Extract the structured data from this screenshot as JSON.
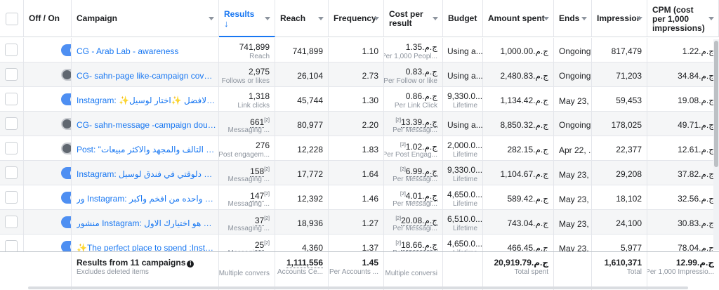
{
  "headers": {
    "off_on": "Off / On",
    "campaign": "Campaign",
    "results": "Results",
    "reach": "Reach",
    "frequency": "Frequency",
    "cost_per_result": "Cost per result",
    "budget": "Budget",
    "amount_spent": "Amount spent",
    "ends": "Ends",
    "impressions": "Impressior",
    "cpm": "CPM (cost per 1,000 impressions)"
  },
  "rows": [
    {
      "on": true,
      "campaign": "CG - Arab Lab - awareness",
      "results": "741,899",
      "results_sub": "Reach",
      "results_dotted": false,
      "results_sup": "",
      "reach": "741,899",
      "frequency": "1.10",
      "cost": "ج.م.1.35",
      "cost_sub": "Per 1,000 Peopl...",
      "cost_dotted": false,
      "cost_sup": "",
      "budget": "Using a...",
      "budget_sub": "",
      "spent": "ج.م.1,000.00",
      "ends": "Ongoing",
      "ends_date": false,
      "impressions": "817,479",
      "cpm": "ج.م.1.22"
    },
    {
      "on": false,
      "campaign": "CG- sahn-page like-campaign cover 16/2",
      "results": "2,975",
      "results_sub": "Follows or likes",
      "results_dotted": false,
      "results_sup": "",
      "reach": "26,104",
      "frequency": "2.73",
      "cost": "ج.م.0.83",
      "cost_sub": "Per Follow or like",
      "cost_dotted": false,
      "cost_sup": "",
      "budget": "Using a...",
      "budget_sub": "",
      "spent": "ج.م.2,480.83",
      "ends": "Ongoing",
      "ends_date": false,
      "impressions": "71,203",
      "cpm": "ج.م.34.84"
    },
    {
      "on": true,
      "campaign": "Instagram: ✨اختار الافضل ✨اختار لوسيل...",
      "results": "1,318",
      "results_sub": "Link clicks",
      "results_dotted": false,
      "results_sup": "",
      "reach": "45,744",
      "frequency": "1.30",
      "cost": "ج.م.0.86",
      "cost_sub": "Per Link Click",
      "cost_dotted": false,
      "cost_sup": "",
      "budget": "9,330.0...",
      "budget_sub": "Lifetime",
      "spent": "ج.م.1,134.42",
      "ends": "May 23, ...",
      "ends_date": true,
      "impressions": "59,453",
      "cpm": "ج.م.19.08"
    },
    {
      "on": false,
      "campaign": "CG- sahn-message -campaign double o...",
      "results": "661",
      "results_sub": "Messaging ...",
      "results_dotted": true,
      "results_sup": "[2]",
      "reach": "80,977",
      "frequency": "2.20",
      "cost": "ج.م.13.39",
      "cost_sub": "Per Messagi...",
      "cost_dotted": true,
      "cost_sup": "[2]",
      "budget": "Using a...",
      "budget_sub": "",
      "spent": "ج.م.8,850.32",
      "ends": "Ongoing",
      "ends_date": false,
      "impressions": "178,025",
      "cpm": "ج.م.49.71"
    },
    {
      "on": false,
      "campaign": "Post: \"يين يومي للشعر التالف والمجهد والاكثر مبيعات...",
      "results": "276",
      "results_sub": "Post engagem...",
      "results_dotted": false,
      "results_sup": "",
      "reach": "12,228",
      "frequency": "1.83",
      "cost": "ج.م.1.02",
      "cost_sub": "Per Post Engag...",
      "cost_dotted": false,
      "cost_sup": "[2]",
      "budget": "2,000.0...",
      "budget_sub": "Lifetime",
      "spent": "ج.م.282.15",
      "ends": "Apr 22, ...",
      "ends_date": true,
      "impressions": "22,377",
      "cpm": "ج.م.12.61"
    },
    {
      "on": true,
      "campaign": "Instagram: احجز فرحك دلوقتي في فندق لوسيل...",
      "results": "158",
      "results_sub": "Messaging ...",
      "results_dotted": true,
      "results_sup": "[2]",
      "reach": "17,772",
      "frequency": "1.64",
      "cost": "ج.م.6.99",
      "cost_sub": "Per Messagi...",
      "cost_dotted": true,
      "cost_sup": "[2]",
      "budget": "9,330.0...",
      "budget_sub": "Lifetime",
      "spent": "ج.م.1,104.67",
      "ends": "May 23, ...",
      "ends_date": true,
      "impressions": "29,208",
      "cpm": "ج.م.37.82"
    },
    {
      "on": true,
      "campaign": "ور Instagram: قاعة لوسيل واحده من افخم واكبر...",
      "results": "147",
      "results_sub": "Messaging ...",
      "results_dotted": true,
      "results_sup": "[2]",
      "reach": "12,392",
      "frequency": "1.46",
      "cost": "ج.م.4.01",
      "cost_sub": "Per Messagi...",
      "cost_dotted": true,
      "cost_sup": "[2]",
      "budget": "4,650.0...",
      "budget_sub": "Lifetime",
      "spent": "ج.م.589.42",
      "ends": "May 23, ...",
      "ends_date": true,
      "impressions": "18,102",
      "cpm": "ج.م.32.56"
    },
    {
      "on": true,
      "campaign": "منشور Instagram: فندق لوسيل هو اختيارك الاول...",
      "results": "37",
      "results_sub": "Messaging ...",
      "results_dotted": true,
      "results_sup": "[2]",
      "reach": "18,936",
      "frequency": "1.27",
      "cost": "ج.م.20.08",
      "cost_sub": "Per Messagi...",
      "cost_dotted": true,
      "cost_sup": "[2]",
      "budget": "6,510.0...",
      "budget_sub": "Lifetime",
      "spent": "ج.م.743.04",
      "ends": "May 23, ...",
      "ends_date": true,
      "impressions": "24,100",
      "cpm": "ج.م.30.83"
    },
    {
      "on": true,
      "campaign": "✨The perfect place to spend :Instagr...",
      "results": "25",
      "results_sub": "Messaging ...",
      "results_dotted": true,
      "results_sup": "[2]",
      "reach": "4,360",
      "frequency": "1.37",
      "cost": "ج.م.18.66",
      "cost_sub": "Per Messagi...",
      "cost_dotted": true,
      "cost_sup": "[2]",
      "budget": "4,650.0...",
      "budget_sub": "Lifetime",
      "spent": "ج.م.466.45",
      "ends": "May 23, ...",
      "ends_date": true,
      "impressions": "5,977",
      "cpm": "ج.م.78.04"
    }
  ],
  "footer": {
    "title": "Results from 11 campaigns",
    "title_sub": "Excludes deleted items",
    "results_sub": "Multiple convers",
    "reach": "1,111,556",
    "reach_sub": "Accounts Ce...",
    "frequency": "1.45",
    "frequency_sub": "Per Accounts ...",
    "cost_sub": "Multiple conversi",
    "spent": "ج.م.20,919.79",
    "spent_sub": "Total spent",
    "impressions": "1,610,371",
    "impressions_sub": "Total",
    "cpm": "ج.م.12.99",
    "cpm_sub": "Per 1,000 Impressio..."
  },
  "colors": {
    "link": "#1877f2",
    "toggle_on": "#4e8ff2",
    "toggle_off": "#c9ccd1"
  }
}
